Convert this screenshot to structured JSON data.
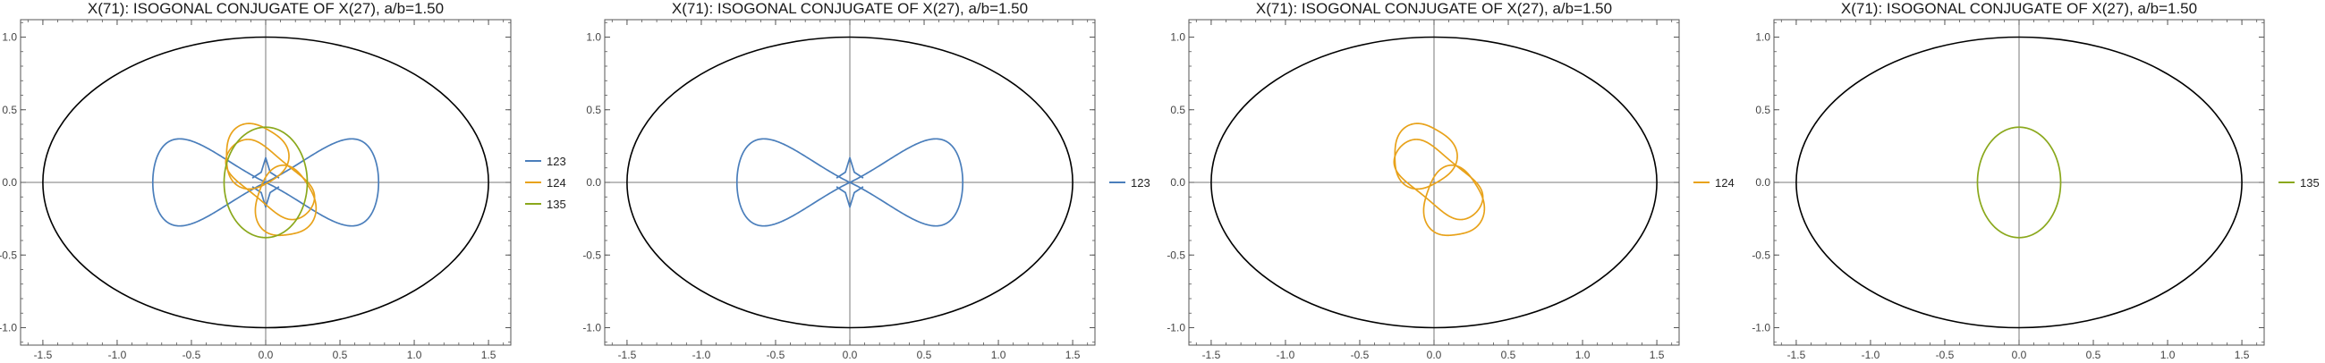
{
  "colors": {
    "ellipse": "#000000",
    "axis": "#7a7a7a",
    "frame": "#555555",
    "s123": "#4a7ebb",
    "s124": "#e8a21a",
    "s135": "#8aa81c"
  },
  "chart_data": [
    {
      "type": "line",
      "title": "X(71): ISOGONAL CONJUGATE OF X(27), a/b=1.50",
      "xlim": [
        -1.65,
        1.65
      ],
      "ylim": [
        -1.12,
        1.12
      ],
      "x_ticks": [
        "-1.5",
        "-1.0",
        "-0.5",
        "0.0",
        "0.5",
        "1.0",
        "1.5"
      ],
      "y_ticks": [
        "-1.0",
        "-0.5",
        "0.0",
        "0.5",
        "1.0"
      ],
      "grid": false,
      "legend_position": "right",
      "ellipse": {
        "a": 1.5,
        "b": 1.0
      },
      "legend": [
        "123",
        "124",
        "135"
      ]
    },
    {
      "type": "line",
      "title": "X(71): ISOGONAL CONJUGATE OF X(27), a/b=1.50",
      "xlim": [
        -1.65,
        1.65
      ],
      "ylim": [
        -1.12,
        1.12
      ],
      "x_ticks": [
        "-1.5",
        "-1.0",
        "-0.5",
        "0.0",
        "0.5",
        "1.0",
        "1.5"
      ],
      "y_ticks": [
        "-1.0",
        "-0.5",
        "0.0",
        "0.5",
        "1.0"
      ],
      "grid": false,
      "legend_position": "right",
      "ellipse": {
        "a": 1.5,
        "b": 1.0
      },
      "legend": [
        "123"
      ]
    },
    {
      "type": "line",
      "title": "X(71): ISOGONAL CONJUGATE OF X(27), a/b=1.50",
      "xlim": [
        -1.65,
        1.65
      ],
      "ylim": [
        -1.12,
        1.12
      ],
      "x_ticks": [
        "-1.5",
        "-1.0",
        "-0.5",
        "0.0",
        "0.5",
        "1.0",
        "1.5"
      ],
      "y_ticks": [
        "-1.0",
        "-0.5",
        "0.0",
        "0.5",
        "1.0"
      ],
      "grid": false,
      "legend_position": "right",
      "ellipse": {
        "a": 1.5,
        "b": 1.0
      },
      "legend": [
        "124"
      ]
    },
    {
      "type": "line",
      "title": "X(71): ISOGONAL CONJUGATE OF X(27), a/b=1.50",
      "xlim": [
        -1.65,
        1.65
      ],
      "ylim": [
        -1.12,
        1.12
      ],
      "x_ticks": [
        "-1.5",
        "-1.0",
        "-0.5",
        "0.0",
        "0.5",
        "1.0",
        "1.5"
      ],
      "y_ticks": [
        "-1.0",
        "-0.5",
        "0.0",
        "0.5",
        "1.0"
      ],
      "grid": false,
      "legend_position": "right",
      "ellipse": {
        "a": 1.5,
        "b": 1.0
      },
      "legend": [
        "135"
      ]
    }
  ]
}
